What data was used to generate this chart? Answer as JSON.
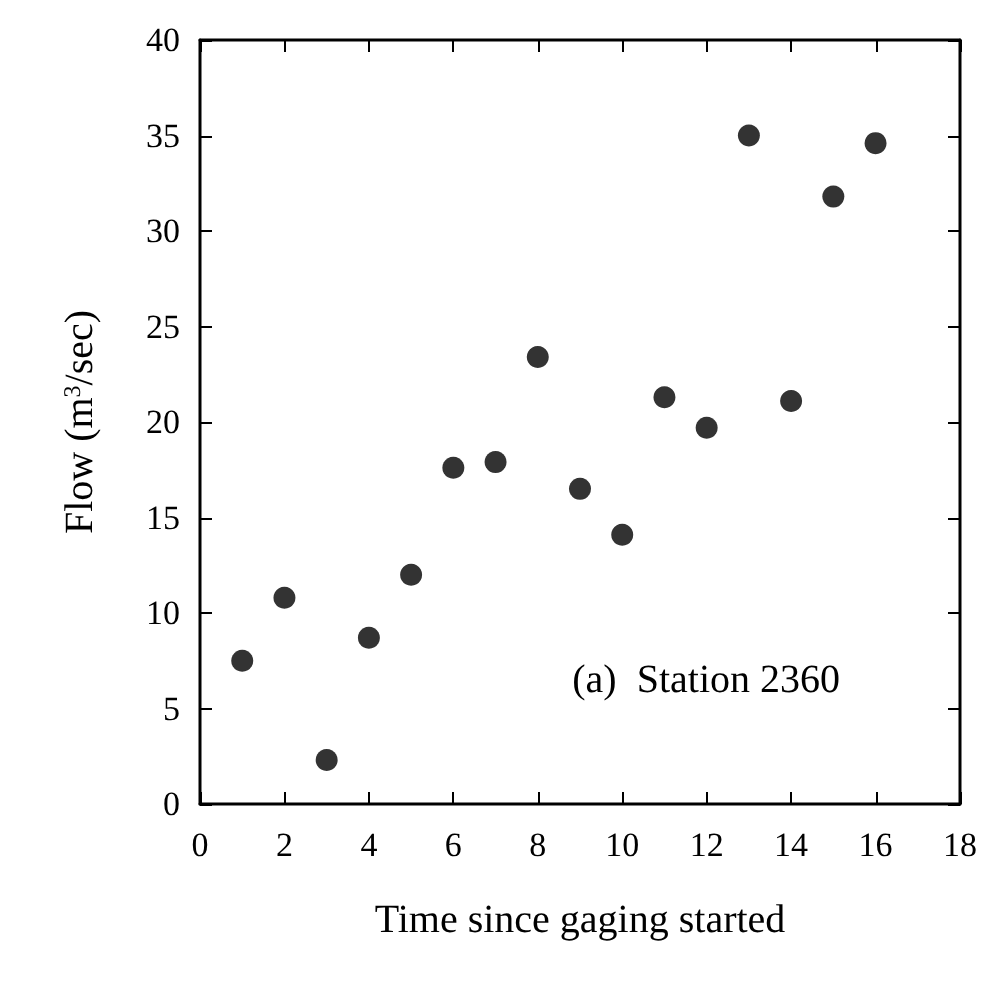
{
  "chart_data": {
    "type": "scatter",
    "xlabel": "Time since gaging started",
    "ylabel": "Flow (m$^{3}$/sec)",
    "annotations": [
      "(a)  Station 2360"
    ],
    "x": [
      1,
      2,
      3,
      4,
      5,
      6,
      7,
      8,
      9,
      10,
      11,
      12,
      13,
      14,
      15,
      16
    ],
    "series": [
      {
        "color": "#000000",
        "values": [
          7.5,
          10.8,
          2.3,
          8.7,
          12,
          17.6,
          17.9,
          23.4,
          16.5,
          14.1,
          21.3,
          19.7,
          35,
          21.1,
          31.8,
          34.6
        ]
      }
    ],
    "xlim": [
      0,
      18
    ],
    "xticks": [
      0,
      2,
      4,
      6,
      8,
      10,
      12,
      14,
      16,
      18
    ],
    "ylim": [
      0,
      40
    ],
    "yticks": [
      0,
      5,
      10,
      15,
      20,
      25,
      30,
      35,
      40
    ],
    "grid": false,
    "marker": "circle"
  }
}
